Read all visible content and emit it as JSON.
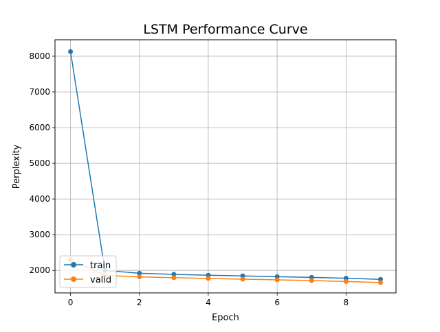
{
  "chart_data": {
    "type": "line",
    "title": "LSTM Performance Curve",
    "xlabel": "Epoch",
    "ylabel": "Perplexity",
    "xlim": [
      -0.45,
      9.45
    ],
    "ylim": [
      1370,
      8460
    ],
    "xticks": [
      0,
      2,
      4,
      6,
      8
    ],
    "yticks": [
      2000,
      3000,
      4000,
      5000,
      6000,
      7000,
      8000
    ],
    "grid": true,
    "legend_position": "lower-left",
    "x": [
      0,
      1,
      2,
      3,
      4,
      5,
      6,
      7,
      8,
      9
    ],
    "series": [
      {
        "name": "train",
        "color": "#1f77b4",
        "marker": "circle",
        "values": [
          8130,
          2000,
          1920,
          1890,
          1865,
          1845,
          1825,
          1805,
          1780,
          1750
        ]
      },
      {
        "name": "valid",
        "color": "#ff7f0e",
        "marker": "circle",
        "values": [
          2300,
          1860,
          1820,
          1795,
          1775,
          1755,
          1735,
          1715,
          1690,
          1660
        ]
      }
    ]
  }
}
